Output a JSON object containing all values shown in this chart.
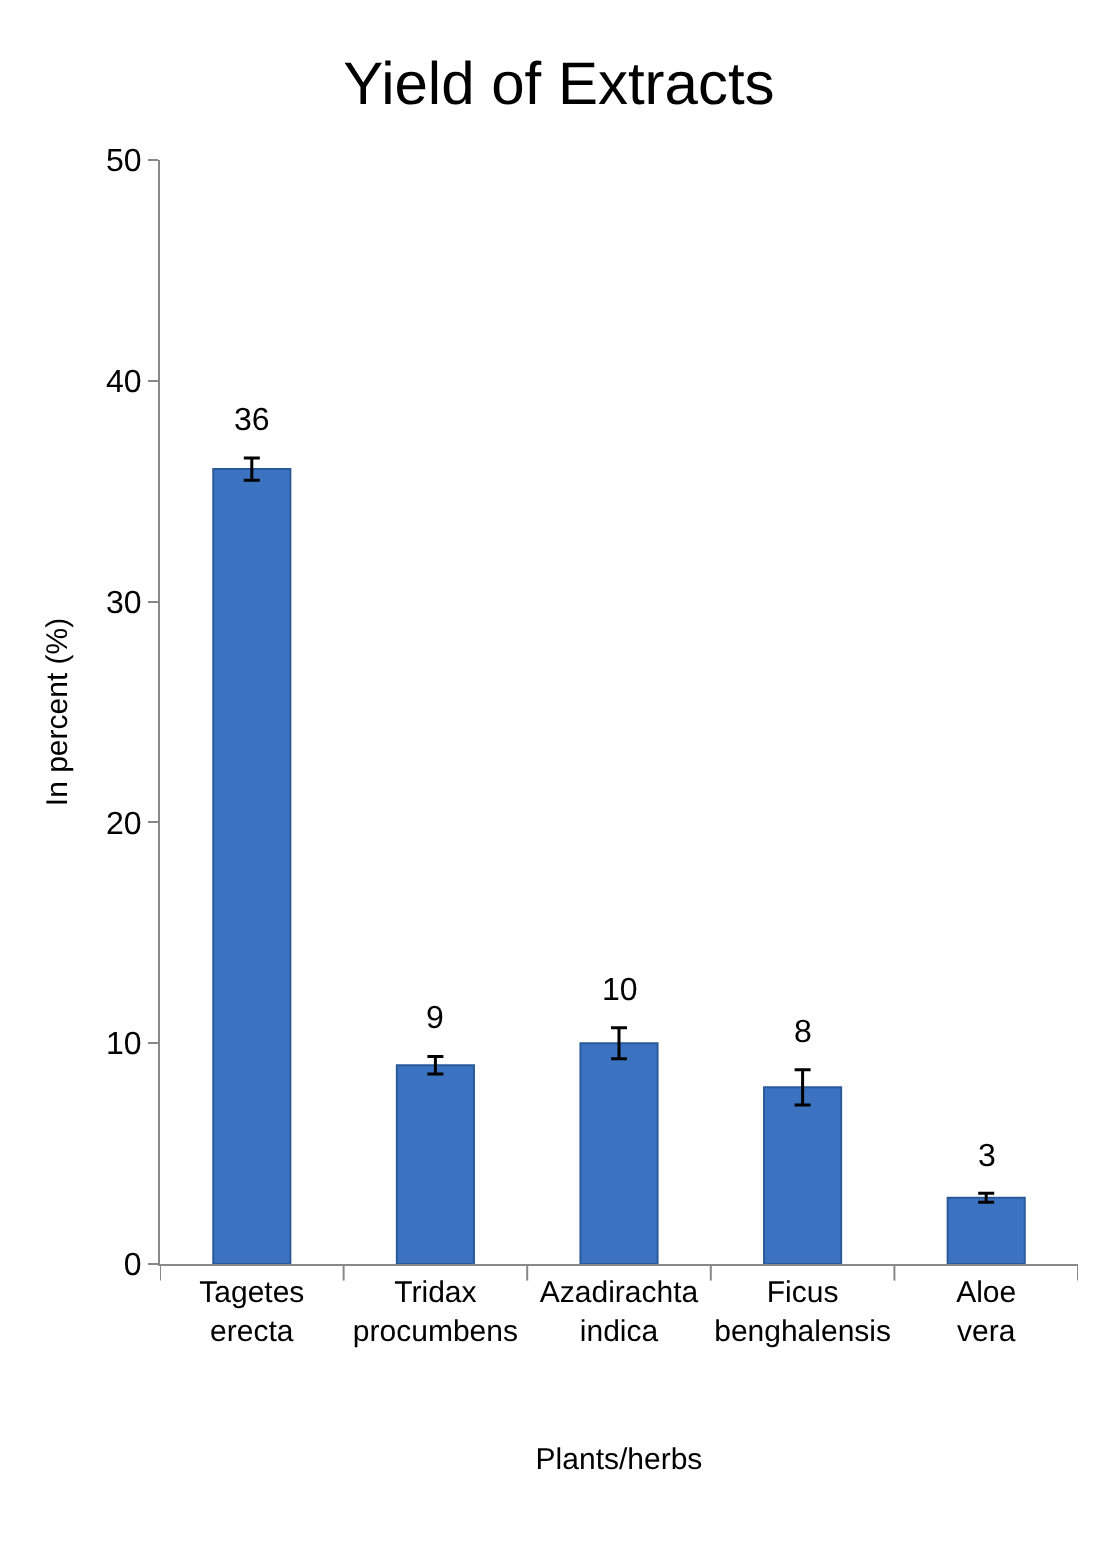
{
  "chart_data": {
    "type": "bar",
    "title": "Yield of Extracts",
    "xlabel": "Plants/herbs",
    "ylabel": "In percent (%)",
    "categories": [
      "Tagetes erecta",
      "Tridax procumbens",
      "Azadirachta indica",
      "Ficus benghalensis",
      "Aloe vera"
    ],
    "values": [
      36,
      9,
      10,
      8,
      3
    ],
    "errors": [
      0.5,
      0.4,
      0.7,
      0.8,
      0.2
    ],
    "color": "#3b73c0",
    "ylim": [
      0,
      50
    ],
    "yticks": [
      0,
      10,
      20,
      30,
      40,
      50
    ],
    "data_labels": true
  }
}
